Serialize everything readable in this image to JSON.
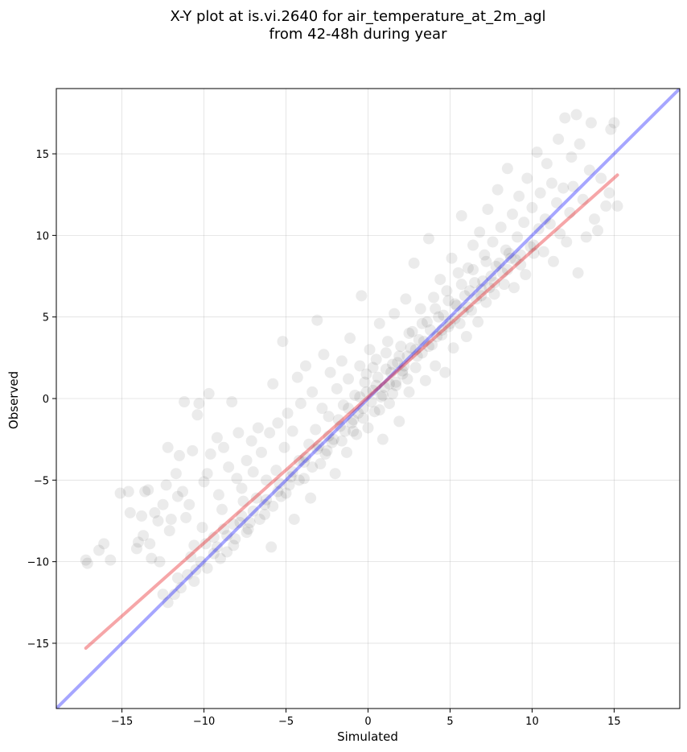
{
  "chart_data": {
    "type": "scatter",
    "title_lines": [
      "X-Y plot at is.vi.2640 for air_temperature_at_2m_agl",
      "from 42-48h during year"
    ],
    "xlabel": "Simulated",
    "ylabel": "Observed",
    "xlim": [
      -19,
      19
    ],
    "ylim": [
      -19,
      19
    ],
    "xticks": [
      -15,
      -10,
      -5,
      0,
      5,
      10,
      15
    ],
    "yticks": [
      -15,
      -10,
      -5,
      0,
      5,
      10,
      15
    ],
    "tick_labels_x": [
      "−15",
      "−10",
      "−5",
      "0",
      "5",
      "10",
      "15"
    ],
    "tick_labels_y": [
      "−15",
      "−10",
      "−5",
      "0",
      "5",
      "10",
      "15"
    ],
    "grid": true,
    "point_color": "#000000",
    "point_alpha": 0.08,
    "lines": [
      {
        "role": "identity",
        "color": "#0000ff",
        "alpha": 0.35,
        "x": [
          -19,
          19
        ],
        "y": [
          -19,
          19
        ]
      },
      {
        "role": "regression",
        "color": "#e8161b",
        "alpha": 0.38,
        "x": [
          -17.2,
          15.2
        ],
        "y": [
          -15.3,
          13.7
        ]
      }
    ],
    "points": [
      [
        -17.2,
        -9.9
      ],
      [
        -17.1,
        -10.1
      ],
      [
        -16.4,
        -9.3
      ],
      [
        -16.1,
        -8.9
      ],
      [
        -15.7,
        -9.9
      ],
      [
        -15.1,
        -5.8
      ],
      [
        -14.6,
        -5.7
      ],
      [
        -14.5,
        -7.0
      ],
      [
        -14.1,
        -9.2
      ],
      [
        -14.0,
        -8.8
      ],
      [
        -13.8,
        -7.2
      ],
      [
        -13.7,
        -8.4
      ],
      [
        -13.6,
        -5.7
      ],
      [
        -13.4,
        -5.6
      ],
      [
        -13.3,
        -8.9
      ],
      [
        -13.2,
        -9.8
      ],
      [
        -13.0,
        -7.0
      ],
      [
        -12.8,
        -7.5
      ],
      [
        -12.7,
        -10.0
      ],
      [
        -12.5,
        -6.5
      ],
      [
        -12.3,
        -5.3
      ],
      [
        -12.2,
        -3.0
      ],
      [
        -12.1,
        -8.1
      ],
      [
        -12.0,
        -7.4
      ],
      [
        -11.7,
        -4.6
      ],
      [
        -11.6,
        -6.0
      ],
      [
        -11.5,
        -3.5
      ],
      [
        -11.3,
        -5.7
      ],
      [
        -11.2,
        -0.2
      ],
      [
        -11.1,
        -7.3
      ],
      [
        -10.9,
        -6.5
      ],
      [
        -10.7,
        -3.2
      ],
      [
        -10.6,
        -9.0
      ],
      [
        -10.4,
        -1.0
      ],
      [
        -10.3,
        -0.3
      ],
      [
        -10.1,
        -7.9
      ],
      [
        -10.0,
        -5.1
      ],
      [
        -9.8,
        -4.6
      ],
      [
        -9.7,
        0.3
      ],
      [
        -9.6,
        -3.4
      ],
      [
        -9.4,
        -8.5
      ],
      [
        -9.2,
        -2.4
      ],
      [
        -9.1,
        -5.9
      ],
      [
        -8.9,
        -6.8
      ],
      [
        -8.8,
        -3.0
      ],
      [
        -8.6,
        -9.4
      ],
      [
        -8.5,
        -4.2
      ],
      [
        -8.3,
        -0.2
      ],
      [
        -8.2,
        -7.7
      ],
      [
        -8.0,
        -4.9
      ],
      [
        -7.9,
        -2.1
      ],
      [
        -7.7,
        -5.5
      ],
      [
        -7.6,
        -6.3
      ],
      [
        -7.4,
        -3.8
      ],
      [
        -7.3,
        -8.0
      ],
      [
        -7.1,
        -2.6
      ],
      [
        -7.0,
        -4.5
      ],
      [
        -6.8,
        -6.1
      ],
      [
        -6.7,
        -1.8
      ],
      [
        -6.5,
        -3.3
      ],
      [
        -6.3,
        -7.1
      ],
      [
        -6.2,
        -5.0
      ],
      [
        -6.0,
        -2.1
      ],
      [
        -5.9,
        -9.1
      ],
      [
        -5.8,
        0.9
      ],
      [
        -5.6,
        -4.4
      ],
      [
        -5.5,
        -1.5
      ],
      [
        -5.3,
        -6.0
      ],
      [
        -5.2,
        3.5
      ],
      [
        -5.1,
        -3.0
      ],
      [
        -4.9,
        -0.9
      ],
      [
        -4.8,
        -5.3
      ],
      [
        -4.6,
        -2.0
      ],
      [
        -4.5,
        -7.4
      ],
      [
        -4.3,
        1.3
      ],
      [
        -4.2,
        -3.8
      ],
      [
        -4.1,
        -0.3
      ],
      [
        -3.9,
        -4.9
      ],
      [
        -3.8,
        2.0
      ],
      [
        -3.6,
        -2.8
      ],
      [
        -3.5,
        -6.1
      ],
      [
        -3.4,
        0.4
      ],
      [
        -3.2,
        -1.9
      ],
      [
        -3.1,
        4.8
      ],
      [
        -2.9,
        -4.0
      ],
      [
        -2.8,
        -0.6
      ],
      [
        -2.7,
        2.7
      ],
      [
        -2.5,
        -3.2
      ],
      [
        -2.4,
        -1.1
      ],
      [
        -2.3,
        1.6
      ],
      [
        -2.1,
        -2.5
      ],
      [
        -2.0,
        -4.6
      ],
      [
        -1.9,
        0.6
      ],
      [
        -1.7,
        -1.7
      ],
      [
        -1.6,
        2.3
      ],
      [
        -1.5,
        -0.4
      ],
      [
        -1.3,
        -3.3
      ],
      [
        -1.2,
        1.2
      ],
      [
        -1.1,
        3.7
      ],
      [
        -0.9,
        -1.3
      ],
      [
        -0.8,
        0.2
      ],
      [
        -0.7,
        -2.2
      ],
      [
        -0.5,
        2.0
      ],
      [
        -0.4,
        6.3
      ],
      [
        -0.3,
        -0.6
      ],
      [
        -0.1,
        1.5
      ],
      [
        0.0,
        -1.8
      ],
      [
        0.1,
        3.0
      ],
      [
        0.3,
        0.5
      ],
      [
        0.4,
        -0.8
      ],
      [
        0.5,
        2.4
      ],
      [
        0.7,
        4.6
      ],
      [
        0.8,
        0.1
      ],
      [
        0.9,
        -2.5
      ],
      [
        1.1,
        1.8
      ],
      [
        1.2,
        3.5
      ],
      [
        1.3,
        -0.3
      ],
      [
        1.5,
        2.1
      ],
      [
        1.6,
        5.2
      ],
      [
        1.7,
        0.8
      ],
      [
        1.9,
        -1.4
      ],
      [
        2.0,
        3.2
      ],
      [
        2.1,
        1.5
      ],
      [
        2.3,
        6.1
      ],
      [
        2.4,
        2.6
      ],
      [
        2.5,
        0.4
      ],
      [
        2.7,
        4.1
      ],
      [
        2.8,
        8.3
      ],
      [
        2.9,
        1.9
      ],
      [
        3.1,
        3.6
      ],
      [
        3.2,
        5.5
      ],
      [
        3.3,
        2.8
      ],
      [
        3.5,
        1.1
      ],
      [
        3.6,
        4.7
      ],
      [
        3.7,
        9.8
      ],
      [
        3.9,
        3.3
      ],
      [
        4.0,
        6.2
      ],
      [
        4.1,
        2.0
      ],
      [
        4.3,
        5.0
      ],
      [
        4.4,
        7.3
      ],
      [
        4.5,
        3.9
      ],
      [
        4.7,
        1.6
      ],
      [
        4.8,
        6.6
      ],
      [
        4.9,
        4.4
      ],
      [
        5.1,
        8.6
      ],
      [
        5.2,
        3.1
      ],
      [
        5.3,
        5.8
      ],
      [
        5.5,
        7.7
      ],
      [
        5.6,
        4.6
      ],
      [
        5.7,
        11.2
      ],
      [
        5.9,
        6.3
      ],
      [
        6.0,
        3.8
      ],
      [
        6.1,
        8.0
      ],
      [
        6.3,
        5.4
      ],
      [
        6.4,
        9.4
      ],
      [
        6.5,
        7.1
      ],
      [
        6.7,
        4.7
      ],
      [
        6.8,
        10.2
      ],
      [
        6.9,
        6.7
      ],
      [
        7.1,
        8.8
      ],
      [
        7.2,
        5.9
      ],
      [
        7.3,
        11.6
      ],
      [
        7.5,
        7.5
      ],
      [
        7.6,
        9.6
      ],
      [
        7.7,
        6.4
      ],
      [
        7.9,
        12.8
      ],
      [
        8.0,
        8.3
      ],
      [
        8.1,
        10.5
      ],
      [
        8.3,
        7.0
      ],
      [
        8.4,
        9.1
      ],
      [
        8.5,
        14.1
      ],
      [
        8.7,
        8.6
      ],
      [
        8.8,
        11.3
      ],
      [
        8.9,
        6.8
      ],
      [
        9.1,
        9.9
      ],
      [
        9.2,
        12.4
      ],
      [
        9.3,
        8.2
      ],
      [
        9.5,
        10.8
      ],
      [
        9.6,
        7.6
      ],
      [
        9.7,
        13.5
      ],
      [
        9.9,
        9.3
      ],
      [
        10.0,
        11.7
      ],
      [
        10.1,
        8.9
      ],
      [
        10.3,
        15.1
      ],
      [
        10.4,
        10.4
      ],
      [
        10.5,
        12.6
      ],
      [
        10.7,
        9.0
      ],
      [
        10.8,
        11.0
      ],
      [
        10.9,
        14.4
      ],
      [
        11.1,
        10.7
      ],
      [
        11.2,
        13.2
      ],
      [
        11.3,
        8.4
      ],
      [
        11.5,
        12.0
      ],
      [
        11.6,
        15.9
      ],
      [
        11.7,
        10.1
      ],
      [
        11.9,
        12.9
      ],
      [
        12.0,
        17.2
      ],
      [
        12.1,
        9.6
      ],
      [
        12.3,
        11.4
      ],
      [
        12.4,
        14.8
      ],
      [
        12.5,
        13.0
      ],
      [
        12.7,
        17.4
      ],
      [
        12.8,
        7.7
      ],
      [
        12.9,
        15.6
      ],
      [
        13.1,
        12.2
      ],
      [
        13.3,
        9.9
      ],
      [
        13.5,
        14.0
      ],
      [
        13.6,
        16.9
      ],
      [
        13.8,
        11.0
      ],
      [
        14.0,
        10.3
      ],
      [
        14.2,
        13.5
      ],
      [
        14.5,
        11.8
      ],
      [
        14.7,
        12.6
      ],
      [
        14.8,
        16.5
      ],
      [
        15.0,
        16.9
      ],
      [
        15.2,
        11.8
      ],
      [
        -0.2,
        1.0
      ],
      [
        0.2,
        -0.2
      ],
      [
        0.6,
        1.3
      ],
      [
        1.0,
        0.7
      ],
      [
        1.4,
        1.6
      ],
      [
        1.8,
        2.2
      ],
      [
        2.2,
        2.0
      ],
      [
        2.6,
        3.1
      ],
      [
        3.0,
        2.6
      ],
      [
        3.4,
        3.5
      ],
      [
        3.8,
        4.2
      ],
      [
        4.2,
        3.8
      ],
      [
        4.6,
        5.1
      ],
      [
        5.0,
        4.6
      ],
      [
        5.4,
        5.7
      ],
      [
        5.8,
        5.3
      ],
      [
        6.2,
        6.6
      ],
      [
        6.6,
        6.1
      ],
      [
        7.0,
        7.2
      ],
      [
        7.4,
        6.8
      ],
      [
        7.8,
        8.1
      ],
      [
        8.2,
        7.7
      ],
      [
        8.6,
        8.9
      ],
      [
        9.0,
        8.5
      ],
      [
        -0.6,
        -0.9
      ],
      [
        -1.0,
        -1.5
      ],
      [
        -1.4,
        -2.0
      ],
      [
        -1.8,
        -1.3
      ],
      [
        -2.2,
        -2.7
      ],
      [
        -2.6,
        -3.4
      ],
      [
        -3.0,
        -2.9
      ],
      [
        -3.4,
        -4.2
      ],
      [
        -3.8,
        -3.6
      ],
      [
        -4.2,
        -5.0
      ],
      [
        -4.6,
        -4.5
      ],
      [
        -5.0,
        -5.8
      ],
      [
        -5.4,
        -5.2
      ],
      [
        -5.8,
        -6.6
      ],
      [
        -6.2,
        -6.2
      ],
      [
        -6.6,
        -7.4
      ],
      [
        -7.0,
        -6.9
      ],
      [
        -7.4,
        -8.2
      ],
      [
        -7.8,
        -7.6
      ],
      [
        -8.2,
        -9.0
      ],
      [
        -8.6,
        -8.4
      ],
      [
        -9.0,
        -9.8
      ],
      [
        -9.4,
        -9.5
      ],
      [
        -9.8,
        -10.4
      ],
      [
        -10.2,
        -10.0
      ],
      [
        -10.6,
        -11.2
      ],
      [
        -11.0,
        -10.8
      ],
      [
        -11.4,
        -11.6
      ],
      [
        -11.8,
        -12.0
      ],
      [
        -12.2,
        -12.5
      ],
      [
        -12.5,
        -12.0
      ],
      [
        -11.6,
        -11.0
      ],
      [
        -10.8,
        -9.7
      ],
      [
        -10.5,
        -10.5
      ],
      [
        -9.9,
        -8.9
      ],
      [
        -9.2,
        -9.1
      ],
      [
        -8.8,
        -8.0
      ],
      [
        -8.1,
        -8.6
      ],
      [
        -7.7,
        -7.2
      ],
      [
        -7.2,
        -7.6
      ],
      [
        0.9,
        0.2
      ],
      [
        1.3,
        0.9
      ],
      [
        1.7,
        1.0
      ],
      [
        2.1,
        1.7
      ],
      [
        1.5,
        0.3
      ],
      [
        2.4,
        1.2
      ],
      [
        0.7,
        -0.7
      ],
      [
        -0.3,
        -1.2
      ],
      [
        -0.9,
        -2.0
      ],
      [
        -1.6,
        -2.6
      ],
      [
        -0.1,
        0.4
      ],
      [
        0.3,
        1.9
      ],
      [
        1.1,
        2.8
      ],
      [
        2.5,
        4.0
      ],
      [
        3.3,
        4.6
      ],
      [
        4.1,
        5.5
      ],
      [
        4.9,
        6.0
      ],
      [
        5.7,
        7.0
      ],
      [
        6.4,
        7.9
      ],
      [
        7.2,
        8.4
      ],
      [
        2.9,
        3.0
      ],
      [
        3.7,
        3.2
      ],
      [
        4.5,
        4.2
      ],
      [
        5.3,
        4.9
      ],
      [
        6.1,
        5.6
      ],
      [
        6.9,
        6.3
      ],
      [
        7.7,
        7.1
      ],
      [
        8.5,
        7.9
      ],
      [
        9.3,
        8.8
      ],
      [
        10.1,
        9.4
      ],
      [
        -2.4,
        -2.3
      ],
      [
        -3.1,
        -3.1
      ],
      [
        -3.9,
        -3.9
      ],
      [
        -4.7,
        -4.8
      ],
      [
        -5.5,
        -5.7
      ],
      [
        -6.3,
        -6.5
      ],
      [
        -1.2,
        -0.6
      ],
      [
        -0.5,
        0.1
      ],
      [
        0.5,
        0.8
      ],
      [
        1.9,
        2.6
      ]
    ]
  }
}
